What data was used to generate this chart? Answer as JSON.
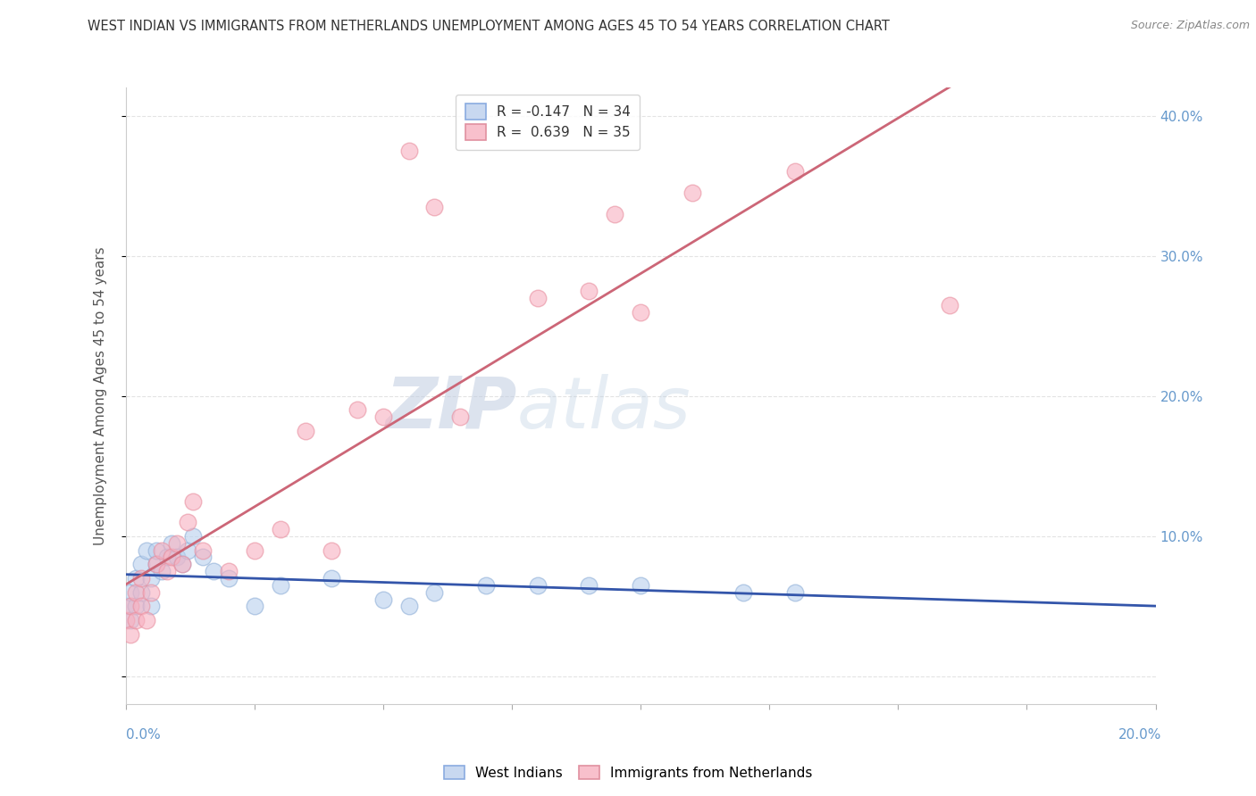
{
  "title": "WEST INDIAN VS IMMIGRANTS FROM NETHERLANDS UNEMPLOYMENT AMONG AGES 45 TO 54 YEARS CORRELATION CHART",
  "source": "Source: ZipAtlas.com",
  "ylabel": "Unemployment Among Ages 45 to 54 years",
  "xlim": [
    0.0,
    0.2
  ],
  "ylim": [
    -0.02,
    0.42
  ],
  "watermark_zip": "ZIP",
  "watermark_atlas": "atlas",
  "series_west_indians": {
    "name": "West Indians",
    "color_fill": "#b8d0ee",
    "color_edge": "#90b0d8",
    "R": -0.147,
    "N": 34,
    "x": [
      0.0,
      0.001,
      0.001,
      0.002,
      0.002,
      0.003,
      0.003,
      0.004,
      0.005,
      0.005,
      0.006,
      0.006,
      0.007,
      0.008,
      0.009,
      0.01,
      0.011,
      0.012,
      0.013,
      0.015,
      0.017,
      0.02,
      0.025,
      0.03,
      0.04,
      0.05,
      0.055,
      0.06,
      0.07,
      0.08,
      0.09,
      0.1,
      0.12,
      0.13
    ],
    "y": [
      0.05,
      0.04,
      0.06,
      0.07,
      0.05,
      0.08,
      0.06,
      0.09,
      0.07,
      0.05,
      0.08,
      0.09,
      0.075,
      0.085,
      0.095,
      0.085,
      0.08,
      0.09,
      0.1,
      0.085,
      0.075,
      0.07,
      0.05,
      0.065,
      0.07,
      0.055,
      0.05,
      0.06,
      0.065,
      0.065,
      0.065,
      0.065,
      0.06,
      0.06
    ]
  },
  "series_netherlands": {
    "name": "Immigrants from Netherlands",
    "color_fill": "#f8b0c0",
    "color_edge": "#e890a0",
    "R": 0.639,
    "N": 35,
    "x": [
      0.0,
      0.001,
      0.001,
      0.002,
      0.002,
      0.003,
      0.003,
      0.004,
      0.005,
      0.006,
      0.007,
      0.008,
      0.009,
      0.01,
      0.011,
      0.012,
      0.013,
      0.015,
      0.02,
      0.025,
      0.03,
      0.035,
      0.04,
      0.045,
      0.05,
      0.055,
      0.06,
      0.065,
      0.08,
      0.09,
      0.095,
      0.1,
      0.11,
      0.13,
      0.16
    ],
    "y": [
      0.04,
      0.05,
      0.03,
      0.06,
      0.04,
      0.05,
      0.07,
      0.04,
      0.06,
      0.08,
      0.09,
      0.075,
      0.085,
      0.095,
      0.08,
      0.11,
      0.125,
      0.09,
      0.075,
      0.09,
      0.105,
      0.175,
      0.09,
      0.19,
      0.185,
      0.375,
      0.335,
      0.185,
      0.27,
      0.275,
      0.33,
      0.26,
      0.345,
      0.36,
      0.265
    ]
  },
  "background_color": "#ffffff",
  "grid_color": "#dddddd",
  "title_color": "#333333",
  "axis_label_color": "#6699cc",
  "line_blue_color": "#3355aa",
  "line_pink_color": "#cc6677",
  "line_blue_dashed_color": "#7799cc"
}
